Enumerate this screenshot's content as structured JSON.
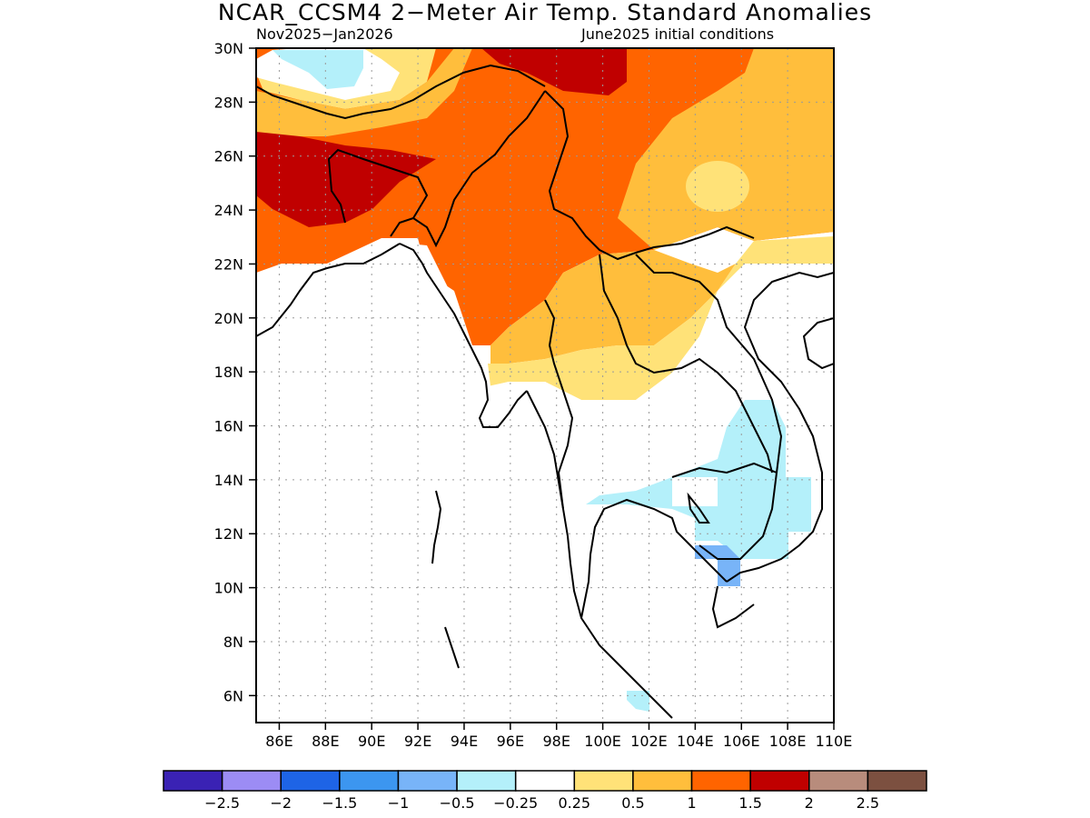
{
  "header": {
    "title": "NCAR_CCSM4 2−Meter Air Temp. Standard Anomalies",
    "period": "Nov2025−Jan2026",
    "init": "June2025 initial conditions"
  },
  "map": {
    "lon_range": [
      85,
      110
    ],
    "lat_range": [
      5,
      30
    ],
    "lat_ticks": [
      "30N",
      "28N",
      "26N",
      "24N",
      "22N",
      "20N",
      "18N",
      "16N",
      "14N",
      "12N",
      "10N",
      "8N",
      "6N"
    ],
    "lon_ticks": [
      "86E",
      "88E",
      "90E",
      "92E",
      "94E",
      "96E",
      "98E",
      "100E",
      "102E",
      "104E",
      "106E",
      "108E",
      "110E"
    ]
  },
  "colorbar": {
    "colors": [
      "#3a22b4",
      "#9c8cf4",
      "#1e64e6",
      "#3c96f0",
      "#78b4f8",
      "#b4f0fa",
      "#ffffff",
      "#ffe278",
      "#ffbe3c",
      "#ff6400",
      "#c00000",
      "#b88c7c",
      "#7c5040"
    ],
    "labels": [
      "−2.5",
      "−2",
      "−1.5",
      "−1",
      "−0.5",
      "−0.25",
      "0.25",
      "0.5",
      "1",
      "1.5",
      "2",
      "2.5"
    ]
  }
}
